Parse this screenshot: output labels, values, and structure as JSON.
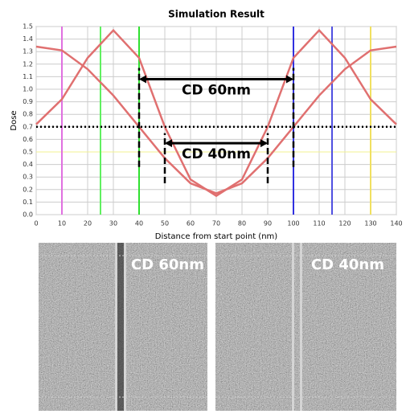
{
  "chart_data": {
    "type": "line",
    "title": "Simulation Result",
    "x_label": "Distance from start point (nm)",
    "y_label": "Dose",
    "x": [
      0,
      10,
      20,
      30,
      40,
      50,
      60,
      70,
      80,
      90,
      100,
      110,
      120,
      130,
      140
    ],
    "series": [
      {
        "color": "#e07070",
        "values": [
          1.34,
          1.31,
          1.16,
          0.95,
          0.7,
          0.45,
          0.25,
          0.17,
          0.25,
          0.45,
          0.7,
          0.95,
          1.16,
          1.31,
          1.34
        ]
      },
      {
        "color": "#e07070",
        "values": [
          0.72,
          0.92,
          1.25,
          1.47,
          1.25,
          0.7,
          0.28,
          0.15,
          0.28,
          0.7,
          1.25,
          1.47,
          1.25,
          0.92,
          0.72
        ]
      }
    ],
    "xlim": [
      0,
      140
    ],
    "xticks": [
      0,
      10,
      20,
      30,
      40,
      50,
      60,
      70,
      80,
      90,
      100,
      110,
      120,
      130,
      140
    ],
    "ylim": [
      0,
      1.5
    ],
    "yticks": [
      {
        "value": 0,
        "label": "0.0"
      },
      0.1,
      0.2,
      0.3,
      0.4,
      0.5,
      0.6,
      0.7,
      0.8,
      0.9,
      {
        "value": 1,
        "label": "1.0"
      },
      1.1,
      1.2,
      1.3,
      1.4,
      1.5
    ],
    "grid": true,
    "vlines": [
      {
        "x": 10,
        "color": "#e070e0"
      },
      {
        "x": 25,
        "color": "#60f060"
      },
      {
        "x": 40,
        "color": "#30e030"
      },
      {
        "x": 100,
        "color": "#3030e0"
      },
      {
        "x": 115,
        "color": "#5050e0"
      },
      {
        "x": 130,
        "color": "#f0e060"
      }
    ],
    "hlines": [
      {
        "y": 0.5,
        "color": "#f0f090"
      }
    ],
    "threshold": 0.7,
    "annotations": [
      {
        "text": "CD 60nm",
        "from": 40,
        "to": 100,
        "y": 1.08,
        "dash_range": [
          0.38,
          1.17
        ]
      },
      {
        "text": "CD 40nm",
        "from": 50,
        "to": 90,
        "y": 0.57,
        "dash_range": [
          0.25,
          0.65
        ]
      }
    ]
  },
  "images": [
    {
      "label": "CD 60nm"
    },
    {
      "label": "CD 40nm"
    }
  ]
}
